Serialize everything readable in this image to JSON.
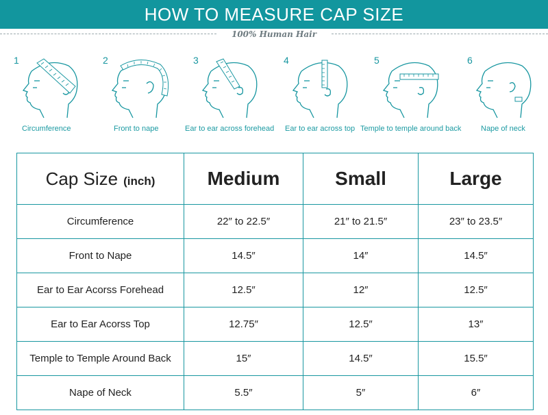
{
  "header": {
    "title": "HOW TO MEASURE CAP SIZE",
    "tagline": "100% Human Hair",
    "color": "#12969e"
  },
  "steps": [
    {
      "number": "1",
      "caption": "Circumference",
      "icon": "head-circumference-icon"
    },
    {
      "number": "2",
      "caption": "Front to nape",
      "icon": "head-front-to-nape-icon"
    },
    {
      "number": "3",
      "caption": "Ear to ear across forehead",
      "icon": "head-ear-forehead-icon"
    },
    {
      "number": "4",
      "caption": "Ear to ear across top",
      "icon": "head-ear-top-icon"
    },
    {
      "number": "5",
      "caption": "Temple to temple around back",
      "icon": "head-temple-back-icon"
    },
    {
      "number": "6",
      "caption": "Nape of neck",
      "icon": "head-nape-neck-icon"
    }
  ],
  "table": {
    "header": {
      "label": "Cap Size",
      "unit": "(inch)"
    },
    "columns": [
      "Medium",
      "Small",
      "Large"
    ],
    "rows": [
      {
        "label": "Circumference",
        "values": [
          "22″ to 22.5″",
          "21″ to 21.5″",
          "23″ to 23.5″"
        ]
      },
      {
        "label": "Front to Nape",
        "values": [
          "14.5″",
          "14″",
          "14.5″"
        ]
      },
      {
        "label": "Ear to Ear Acorss Forehead",
        "values": [
          "12.5″",
          "12″",
          "12.5″"
        ]
      },
      {
        "label": "Ear to Ear Acorss Top",
        "values": [
          "12.75″",
          "12.5″",
          "13″"
        ]
      },
      {
        "label": "Temple to Temple Around Back",
        "values": [
          "15″",
          "14.5″",
          "15.5″"
        ]
      },
      {
        "label": "Nape of Neck",
        "values": [
          "5.5″",
          "5″",
          "6″"
        ]
      }
    ]
  }
}
